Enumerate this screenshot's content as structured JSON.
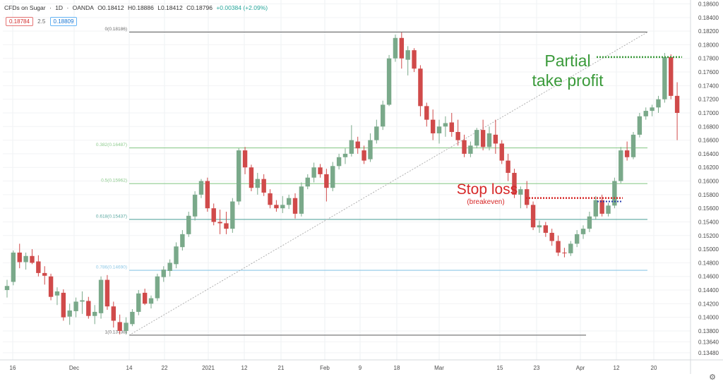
{
  "header": {
    "symbol": "CFDs on Sugar",
    "interval": "1D",
    "exchange": "OANDA",
    "open": "O0.18412",
    "high": "H0.18886",
    "low": "L0.18412",
    "close": "C0.18796",
    "change": "+0.00384 (+2.09%)"
  },
  "badges": {
    "sell": "0.18784",
    "spread": "2.5",
    "buy": "0.18809"
  },
  "colors": {
    "up": "#7aa98a",
    "down": "#d04a4a",
    "partial_text": "#3a9a3a",
    "stop_text": "#d62828",
    "fib_0_1": "#6b6b6b",
    "fib_382_5": "#8fcc8f",
    "fib_618": "#5aa7a0",
    "fib_786": "#8ec8e6"
  },
  "chart_data": {
    "type": "candlestick",
    "y_axis": {
      "range": [
        0.13375,
        0.18657
      ],
      "ticks": [
        "0.18600",
        "0.18400",
        "0.18200",
        "0.18000",
        "0.17800",
        "0.17600",
        "0.17400",
        "0.17200",
        "0.17000",
        "0.16800",
        "0.16600",
        "0.16400",
        "0.16200",
        "0.16000",
        "0.15800",
        "0.15600",
        "0.15400",
        "0.15200",
        "0.15000",
        "0.14800",
        "0.14600",
        "0.14400",
        "0.14200",
        "0.14000",
        "0.13800",
        "0.13640",
        "0.13480"
      ]
    },
    "x_axis": {
      "ticks": [
        "16",
        "Dec",
        "14",
        "22",
        "2021",
        "12",
        "21",
        "Feb",
        "9",
        "18",
        "Mar",
        "15",
        "23",
        "Apr",
        "12",
        "20"
      ]
    },
    "fib_levels": [
      {
        "label": "0(0.18186)",
        "price": 0.18186
      },
      {
        "label": "0.382(0.16487)",
        "price": 0.16487
      },
      {
        "label": "0.5(0.15962)",
        "price": 0.15962
      },
      {
        "label": "0.618(0.15437)",
        "price": 0.15437
      },
      {
        "label": "0.786(0.14690)",
        "price": 0.1469
      },
      {
        "label": "1(0.13738)",
        "price": 0.13738
      }
    ],
    "annotations": {
      "partial_line1": "Partial",
      "partial_line2": "take profit",
      "stop_loss": "Stop loss",
      "breakeven": "(breakeven)"
    },
    "candles": [
      [
        0.144,
        0.1455,
        0.1429,
        0.1446
      ],
      [
        0.1452,
        0.1498,
        0.1447,
        0.1495
      ],
      [
        0.1495,
        0.1508,
        0.1472,
        0.1481
      ],
      [
        0.1481,
        0.1495,
        0.147,
        0.149
      ],
      [
        0.149,
        0.15,
        0.1478,
        0.148
      ],
      [
        0.1482,
        0.1491,
        0.146,
        0.1465
      ],
      [
        0.1465,
        0.1475,
        0.1448,
        0.1461
      ],
      [
        0.146,
        0.1464,
        0.1425,
        0.143
      ],
      [
        0.1432,
        0.1444,
        0.1418,
        0.1438
      ],
      [
        0.1436,
        0.1441,
        0.1395,
        0.14
      ],
      [
        0.1401,
        0.142,
        0.1389,
        0.141
      ],
      [
        0.1409,
        0.1429,
        0.14,
        0.1423
      ],
      [
        0.1423,
        0.1438,
        0.1405,
        0.1425
      ],
      [
        0.1424,
        0.143,
        0.1398,
        0.1402
      ],
      [
        0.1402,
        0.1418,
        0.139,
        0.1408
      ],
      [
        0.1406,
        0.146,
        0.1398,
        0.1455
      ],
      [
        0.1455,
        0.1462,
        0.1411,
        0.1416
      ],
      [
        0.1416,
        0.1423,
        0.1385,
        0.1395
      ],
      [
        0.1393,
        0.1404,
        0.1375,
        0.138
      ],
      [
        0.138,
        0.14,
        0.1375,
        0.1392
      ],
      [
        0.139,
        0.1412,
        0.1387,
        0.1408
      ],
      [
        0.1408,
        0.144,
        0.1403,
        0.1435
      ],
      [
        0.1436,
        0.1442,
        0.1418,
        0.142
      ],
      [
        0.142,
        0.1432,
        0.1413,
        0.1428
      ],
      [
        0.1428,
        0.1464,
        0.1424,
        0.146
      ],
      [
        0.1459,
        0.1475,
        0.1452,
        0.147
      ],
      [
        0.1468,
        0.1485,
        0.146,
        0.148
      ],
      [
        0.1478,
        0.151,
        0.1472,
        0.1504
      ],
      [
        0.1503,
        0.1528,
        0.1498,
        0.1522
      ],
      [
        0.1522,
        0.1555,
        0.1518,
        0.1549
      ],
      [
        0.1548,
        0.1585,
        0.1542,
        0.158
      ],
      [
        0.158,
        0.1603,
        0.1575,
        0.16
      ],
      [
        0.16,
        0.1605,
        0.1555,
        0.156
      ],
      [
        0.156,
        0.1567,
        0.1535,
        0.154
      ],
      [
        0.154,
        0.1558,
        0.1522,
        0.1538
      ],
      [
        0.1538,
        0.1555,
        0.1522,
        0.153
      ],
      [
        0.153,
        0.1575,
        0.1524,
        0.157
      ],
      [
        0.157,
        0.1648,
        0.1565,
        0.1645
      ],
      [
        0.1645,
        0.165,
        0.161,
        0.162
      ],
      [
        0.162,
        0.1624,
        0.1585,
        0.159
      ],
      [
        0.159,
        0.1612,
        0.158,
        0.1603
      ],
      [
        0.1603,
        0.161,
        0.1578,
        0.1583
      ],
      [
        0.1582,
        0.1588,
        0.156,
        0.1565
      ],
      [
        0.1565,
        0.1572,
        0.1555,
        0.156
      ],
      [
        0.156,
        0.1578,
        0.1553,
        0.1565
      ],
      [
        0.1565,
        0.158,
        0.1559,
        0.1575
      ],
      [
        0.1575,
        0.1582,
        0.1545,
        0.1552
      ],
      [
        0.1552,
        0.1598,
        0.1548,
        0.1592
      ],
      [
        0.1592,
        0.161,
        0.1588,
        0.1605
      ],
      [
        0.1605,
        0.1627,
        0.1598,
        0.162
      ],
      [
        0.162,
        0.1625,
        0.1605,
        0.161
      ],
      [
        0.161,
        0.1618,
        0.157,
        0.159
      ],
      [
        0.159,
        0.1628,
        0.1585,
        0.1622
      ],
      [
        0.1622,
        0.164,
        0.1617,
        0.1635
      ],
      [
        0.1635,
        0.1648,
        0.1625,
        0.164
      ],
      [
        0.164,
        0.1682,
        0.1636,
        0.166
      ],
      [
        0.1658,
        0.1665,
        0.164,
        0.1648
      ],
      [
        0.1645,
        0.1652,
        0.1625,
        0.163
      ],
      [
        0.1632,
        0.167,
        0.1628,
        0.166
      ],
      [
        0.166,
        0.169,
        0.1655,
        0.168
      ],
      [
        0.168,
        0.1718,
        0.1675,
        0.1712
      ],
      [
        0.1712,
        0.1785,
        0.171,
        0.178
      ],
      [
        0.178,
        0.1815,
        0.1775,
        0.181
      ],
      [
        0.181,
        0.1818,
        0.1765,
        0.178
      ],
      [
        0.1778,
        0.1798,
        0.1755,
        0.1792
      ],
      [
        0.1792,
        0.1795,
        0.176,
        0.1765
      ],
      [
        0.1765,
        0.177,
        0.1695,
        0.171
      ],
      [
        0.171,
        0.1715,
        0.168,
        0.169
      ],
      [
        0.169,
        0.1705,
        0.166,
        0.167
      ],
      [
        0.167,
        0.169,
        0.1655,
        0.168
      ],
      [
        0.168,
        0.1695,
        0.1665,
        0.1685
      ],
      [
        0.1686,
        0.17,
        0.1665,
        0.1672
      ],
      [
        0.1672,
        0.169,
        0.1652,
        0.166
      ],
      [
        0.166,
        0.1668,
        0.1635,
        0.164
      ],
      [
        0.164,
        0.1658,
        0.1635,
        0.1652
      ],
      [
        0.1652,
        0.1678,
        0.1648,
        0.1675
      ],
      [
        0.1675,
        0.169,
        0.1645,
        0.165
      ],
      [
        0.165,
        0.168,
        0.1645,
        0.167
      ],
      [
        0.1668,
        0.169,
        0.164,
        0.1655
      ],
      [
        0.1655,
        0.166,
        0.1625,
        0.163
      ],
      [
        0.163,
        0.164,
        0.16,
        0.1612
      ],
      [
        0.1612,
        0.1618,
        0.1575,
        0.158
      ],
      [
        0.158,
        0.1592,
        0.156,
        0.1588
      ],
      [
        0.1588,
        0.16,
        0.156,
        0.1565
      ],
      [
        0.1565,
        0.157,
        0.1528,
        0.1532
      ],
      [
        0.1532,
        0.1542,
        0.1524,
        0.1535
      ],
      [
        0.1535,
        0.154,
        0.1518,
        0.1524
      ],
      [
        0.1524,
        0.153,
        0.1505,
        0.1512
      ],
      [
        0.1512,
        0.152,
        0.149,
        0.1495
      ],
      [
        0.1495,
        0.1502,
        0.1488,
        0.1494
      ],
      [
        0.1494,
        0.1512,
        0.149,
        0.1508
      ],
      [
        0.1508,
        0.1528,
        0.1503,
        0.1522
      ],
      [
        0.1522,
        0.1535,
        0.1515,
        0.153
      ],
      [
        0.153,
        0.1555,
        0.1525,
        0.1548
      ],
      [
        0.1548,
        0.1578,
        0.1543,
        0.1572
      ],
      [
        0.1572,
        0.158,
        0.1548,
        0.1552
      ],
      [
        0.1552,
        0.1568,
        0.1548,
        0.1564
      ],
      [
        0.1564,
        0.1605,
        0.156,
        0.16
      ],
      [
        0.16,
        0.165,
        0.1597,
        0.1645
      ],
      [
        0.1645,
        0.1658,
        0.163,
        0.1635
      ],
      [
        0.1635,
        0.1672,
        0.1632,
        0.1668
      ],
      [
        0.1668,
        0.17,
        0.1664,
        0.1695
      ],
      [
        0.1695,
        0.1708,
        0.169,
        0.1703
      ],
      [
        0.1703,
        0.1712,
        0.1695,
        0.1708
      ],
      [
        0.1708,
        0.1725,
        0.17,
        0.172
      ],
      [
        0.172,
        0.1788,
        0.1715,
        0.1782
      ],
      [
        0.1782,
        0.1786,
        0.172,
        0.1725
      ],
      [
        0.1725,
        0.1745,
        0.166,
        0.17
      ]
    ]
  }
}
